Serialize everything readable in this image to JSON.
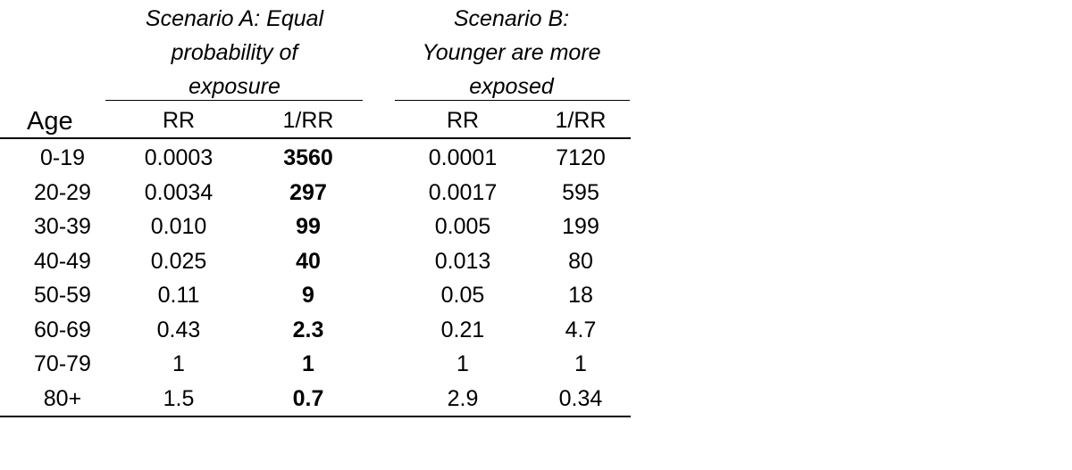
{
  "scenario_a": {
    "lines": [
      "Scenario A: Equal",
      "probability of",
      "exposure"
    ]
  },
  "scenario_b": {
    "lines": [
      "Scenario B:",
      "Younger are more",
      "exposed"
    ]
  },
  "columns": {
    "age": "Age",
    "a_rr": "RR",
    "a_inv": "1/RR",
    "b_rr": "RR",
    "b_inv": "1/RR"
  },
  "rows": [
    {
      "age": "0-19",
      "a_rr": "0.0003",
      "a_inv": "3560",
      "b_rr": "0.0001",
      "b_inv": "7120"
    },
    {
      "age": "20-29",
      "a_rr": "0.0034",
      "a_inv": "297",
      "b_rr": "0.0017",
      "b_inv": "595"
    },
    {
      "age": "30-39",
      "a_rr": "0.010",
      "a_inv": "99",
      "b_rr": "0.005",
      "b_inv": "199"
    },
    {
      "age": "40-49",
      "a_rr": "0.025",
      "a_inv": "40",
      "b_rr": "0.013",
      "b_inv": "80"
    },
    {
      "age": "50-59",
      "a_rr": "0.11",
      "a_inv": "9",
      "b_rr": "0.05",
      "b_inv": "18"
    },
    {
      "age": "60-69",
      "a_rr": "0.43",
      "a_inv": "2.3",
      "b_rr": "0.21",
      "b_inv": "4.7"
    },
    {
      "age": "70-79",
      "a_rr": "1",
      "a_inv": "1",
      "b_rr": "1",
      "b_inv": "1"
    },
    {
      "age": "80+",
      "a_rr": "1.5",
      "a_inv": "0.7",
      "b_rr": "2.9",
      "b_inv": "0.34"
    }
  ]
}
